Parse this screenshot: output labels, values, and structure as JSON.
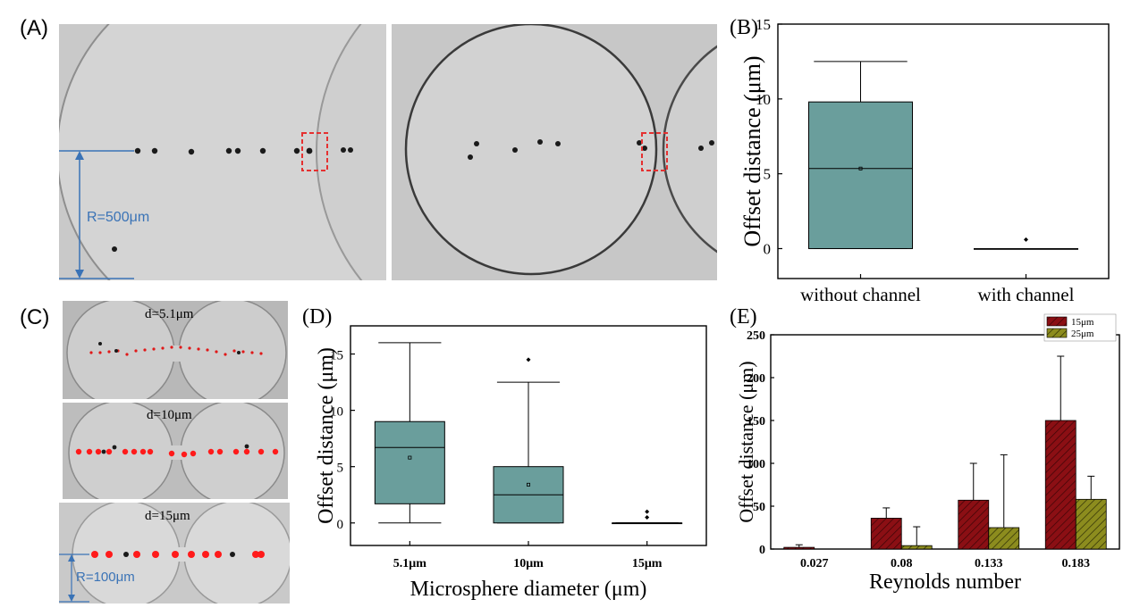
{
  "panels": {
    "A": {
      "label": "(A)",
      "scale_label": "R=500μm"
    },
    "C": {
      "label": "(C)",
      "rows": [
        {
          "label": "d=5.1μm"
        },
        {
          "label": "d=10μm"
        },
        {
          "label": "d=15μm"
        }
      ],
      "scale_label": "R=100μm"
    }
  },
  "colors": {
    "teal": "#6a9e9c",
    "dark_red": "#8b0f14",
    "olive": "#8c8c1e",
    "marker_red": "#ff1a1a",
    "scale_blue": "#3a73b6"
  },
  "chart_data": [
    {
      "panel": "(B)",
      "type": "box",
      "ylabel": "Offset distance (μm)",
      "xlabel": "",
      "categories": [
        "without channel",
        "with channel"
      ],
      "ylim": [
        -2,
        15
      ],
      "yticks": [
        0,
        5,
        10,
        15
      ],
      "boxes": [
        {
          "whisker_low": 0,
          "q1": 0,
          "median": 5.35,
          "mean": 5.35,
          "q3": 9.8,
          "whisker_high": 12.5,
          "outliers": []
        },
        {
          "whisker_low": 0,
          "q1": 0,
          "median": 0,
          "mean": 0,
          "q3": 0,
          "whisker_high": 0,
          "outliers": [
            0.6
          ]
        }
      ]
    },
    {
      "panel": "(D)",
      "type": "box",
      "ylabel": "Offset distance (μm)",
      "xlabel": "Microsphere diameter (μm)",
      "categories": [
        "5.1μm",
        "10μm",
        "15μm"
      ],
      "ylim": [
        -2,
        17.5
      ],
      "yticks": [
        0,
        5,
        10,
        15
      ],
      "boxes": [
        {
          "whisker_low": 0,
          "q1": 1.7,
          "median": 6.7,
          "mean": 5.8,
          "q3": 9.0,
          "whisker_high": 16.0,
          "outliers": []
        },
        {
          "whisker_low": 0,
          "q1": 0,
          "median": 2.5,
          "mean": 3.4,
          "q3": 5.0,
          "whisker_high": 12.5,
          "outliers": [
            14.5
          ]
        },
        {
          "whisker_low": 0,
          "q1": 0,
          "median": 0,
          "mean": 0,
          "q3": 0,
          "whisker_high": 0,
          "outliers": [
            0.5,
            1.0
          ]
        }
      ]
    },
    {
      "panel": "(E)",
      "type": "bar",
      "ylabel": "Offset distance (μm)",
      "xlabel": "Reynolds number",
      "categories": [
        "0.027",
        "0.08",
        "0.133",
        "0.183"
      ],
      "ylim": [
        0,
        250
      ],
      "yticks": [
        0,
        50,
        100,
        150,
        200,
        250
      ],
      "legend_position": "top-right",
      "series": [
        {
          "name": "15μm",
          "values": [
            2,
            36,
            57,
            150
          ],
          "errors": [
            3,
            12,
            43,
            75
          ]
        },
        {
          "name": "25μm",
          "values": [
            0,
            4,
            25,
            58
          ],
          "errors": [
            0,
            22,
            85,
            27
          ]
        }
      ]
    }
  ]
}
